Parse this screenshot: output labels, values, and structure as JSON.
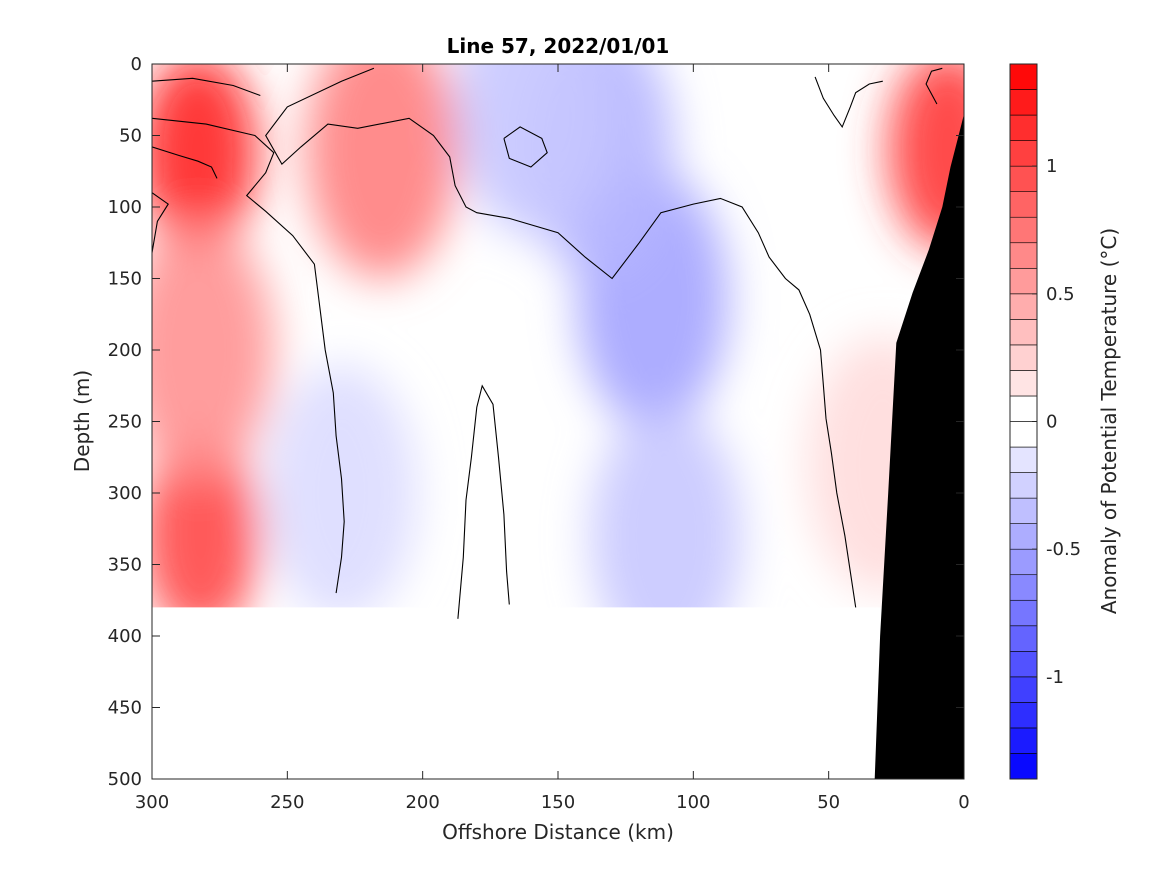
{
  "chart_data": {
    "type": "heatmap",
    "title": "Line 57, 2022/01/01",
    "xlabel": "Offshore Distance (km)",
    "ylabel": "Depth (m)",
    "colorbar_label": "Anomaly of Potential Temperature (°C)",
    "xlim": [
      300,
      0
    ],
    "ylim": [
      0,
      500
    ],
    "x_ticks": [
      "300",
      "250",
      "200",
      "150",
      "100",
      "50",
      "0"
    ],
    "y_ticks": [
      "0",
      "50",
      "100",
      "150",
      "200",
      "250",
      "300",
      "350",
      "400",
      "450",
      "500"
    ],
    "colorbar_ticks": [
      "1",
      "0.5",
      "0",
      "-0.5",
      "-1"
    ],
    "colorbar_range": [
      -1.4,
      1.4
    ],
    "colorbar_step": 0.1,
    "colors": {
      "positive": "#ff0000",
      "negative": "#0000ff",
      "zero": "#ffffff",
      "bathymetry": "#000000",
      "contour": "#000000"
    },
    "grid": false,
    "data_max_depth_m": 380,
    "anomaly_features": [
      {
        "x_km": 283,
        "depth_m": 62,
        "value": 1.2
      },
      {
        "x_km": 282,
        "depth_m": 330,
        "value": 1.0
      },
      {
        "x_km": 283,
        "depth_m": 200,
        "value": 0.6
      },
      {
        "x_km": 215,
        "depth_m": 60,
        "value": 0.7
      },
      {
        "x_km": 6,
        "depth_m": 60,
        "value": 1.1
      },
      {
        "x_km": 30,
        "depth_m": 280,
        "value": 0.2
      },
      {
        "x_km": 115,
        "depth_m": 165,
        "value": -0.5
      },
      {
        "x_km": 135,
        "depth_m": 60,
        "value": -0.4
      },
      {
        "x_km": 160,
        "depth_m": 30,
        "value": -0.3
      },
      {
        "x_km": 230,
        "depth_m": 300,
        "value": -0.2
      },
      {
        "x_km": 110,
        "depth_m": 330,
        "value": -0.3
      }
    ],
    "zero_contours": [
      [
        [
          218,
          3
        ],
        [
          230,
          12
        ],
        [
          250,
          30
        ],
        [
          258,
          50
        ],
        [
          252,
          70
        ],
        [
          245,
          58
        ],
        [
          235,
          42
        ],
        [
          224,
          45
        ],
        [
          205,
          38
        ],
        [
          196,
          50
        ],
        [
          190,
          65
        ],
        [
          188,
          85
        ],
        [
          184,
          100
        ],
        [
          180,
          104
        ],
        [
          168,
          108
        ],
        [
          150,
          118
        ],
        [
          140,
          135
        ],
        [
          130,
          150
        ],
        [
          120,
          125
        ],
        [
          112,
          104
        ],
        [
          100,
          98
        ],
        [
          90,
          94
        ],
        [
          82,
          100
        ],
        [
          76,
          118
        ],
        [
          72,
          135
        ],
        [
          66,
          150
        ],
        [
          61,
          158
        ],
        [
          57,
          175
        ],
        [
          53,
          200
        ],
        [
          52,
          224
        ],
        [
          51,
          248
        ],
        [
          49,
          272
        ],
        [
          47,
          300
        ],
        [
          44,
          330
        ],
        [
          40,
          380
        ]
      ],
      [
        [
          300,
          38
        ],
        [
          280,
          42
        ],
        [
          262,
          50
        ],
        [
          255,
          62
        ],
        [
          258,
          76
        ],
        [
          265,
          92
        ],
        [
          258,
          103
        ],
        [
          248,
          120
        ],
        [
          240,
          140
        ],
        [
          238,
          170
        ],
        [
          236,
          200
        ],
        [
          233,
          230
        ],
        [
          232,
          260
        ],
        [
          230,
          290
        ],
        [
          229,
          320
        ],
        [
          230,
          345
        ],
        [
          232,
          370
        ]
      ],
      [
        [
          187,
          388
        ],
        [
          185,
          345
        ],
        [
          184,
          305
        ],
        [
          182,
          275
        ],
        [
          180,
          240
        ],
        [
          178,
          225
        ],
        [
          174,
          238
        ],
        [
          172,
          275
        ],
        [
          170,
          315
        ],
        [
          169,
          355
        ],
        [
          168,
          378
        ]
      ],
      [
        [
          300,
          58
        ],
        [
          290,
          64
        ],
        [
          283,
          68
        ],
        [
          278,
          72
        ],
        [
          276,
          80
        ]
      ],
      [
        [
          300,
          90
        ],
        [
          294,
          98
        ],
        [
          298,
          110
        ],
        [
          300,
          132
        ]
      ],
      [
        [
          55,
          9
        ],
        [
          52,
          24
        ],
        [
          48,
          36
        ],
        [
          45,
          44
        ],
        [
          42,
          30
        ],
        [
          40,
          20
        ],
        [
          35,
          14
        ],
        [
          30,
          12
        ]
      ],
      [
        [
          300,
          12
        ],
        [
          285,
          10
        ],
        [
          270,
          15
        ],
        [
          260,
          22
        ]
      ],
      [
        [
          170,
          52
        ],
        [
          164,
          44
        ],
        [
          156,
          52
        ],
        [
          154,
          62
        ],
        [
          160,
          72
        ],
        [
          168,
          66
        ],
        [
          170,
          52
        ]
      ],
      [
        [
          10,
          28
        ],
        [
          14,
          14
        ],
        [
          12,
          5
        ],
        [
          8,
          3
        ]
      ]
    ],
    "bathymetry_km_depth": [
      [
        0,
        35
      ],
      [
        2,
        50
      ],
      [
        5,
        72
      ],
      [
        8,
        100
      ],
      [
        13,
        130
      ],
      [
        19,
        160
      ],
      [
        25,
        195
      ],
      [
        28,
        300
      ],
      [
        31,
        400
      ],
      [
        33,
        500
      ]
    ]
  }
}
